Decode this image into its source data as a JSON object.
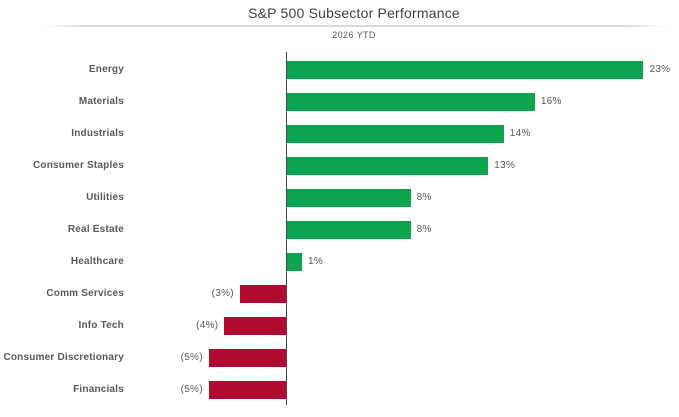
{
  "header": {
    "title": "S&P 500 Subsector Performance",
    "subtitle": "2026 YTD"
  },
  "chart_data": {
    "type": "bar",
    "orientation": "horizontal",
    "title": "S&P 500 Subsector Performance",
    "subtitle": "2026 YTD",
    "categories": [
      "Energy",
      "Materials",
      "Industrials",
      "Consumer Staples",
      "Utilities",
      "Real Estate",
      "Healthcare",
      "Comm Services",
      "Info Tech",
      "Consumer Discretionary",
      "Financials"
    ],
    "values": [
      23,
      16,
      14,
      13,
      8,
      8,
      1,
      -3,
      -4,
      -5,
      -5
    ],
    "data_labels": [
      "23%",
      "16%",
      "14%",
      "13%",
      "8%",
      "8%",
      "1%",
      "(3%)",
      "(4%)",
      "(5%)",
      "(5%)"
    ],
    "xlim": [
      -6,
      25
    ],
    "grid": false,
    "legend": "none",
    "positive_color": "#10a34d",
    "negative_color": "#b00b31",
    "axis_color": "#4a4a4a",
    "text_color": "#595959"
  }
}
